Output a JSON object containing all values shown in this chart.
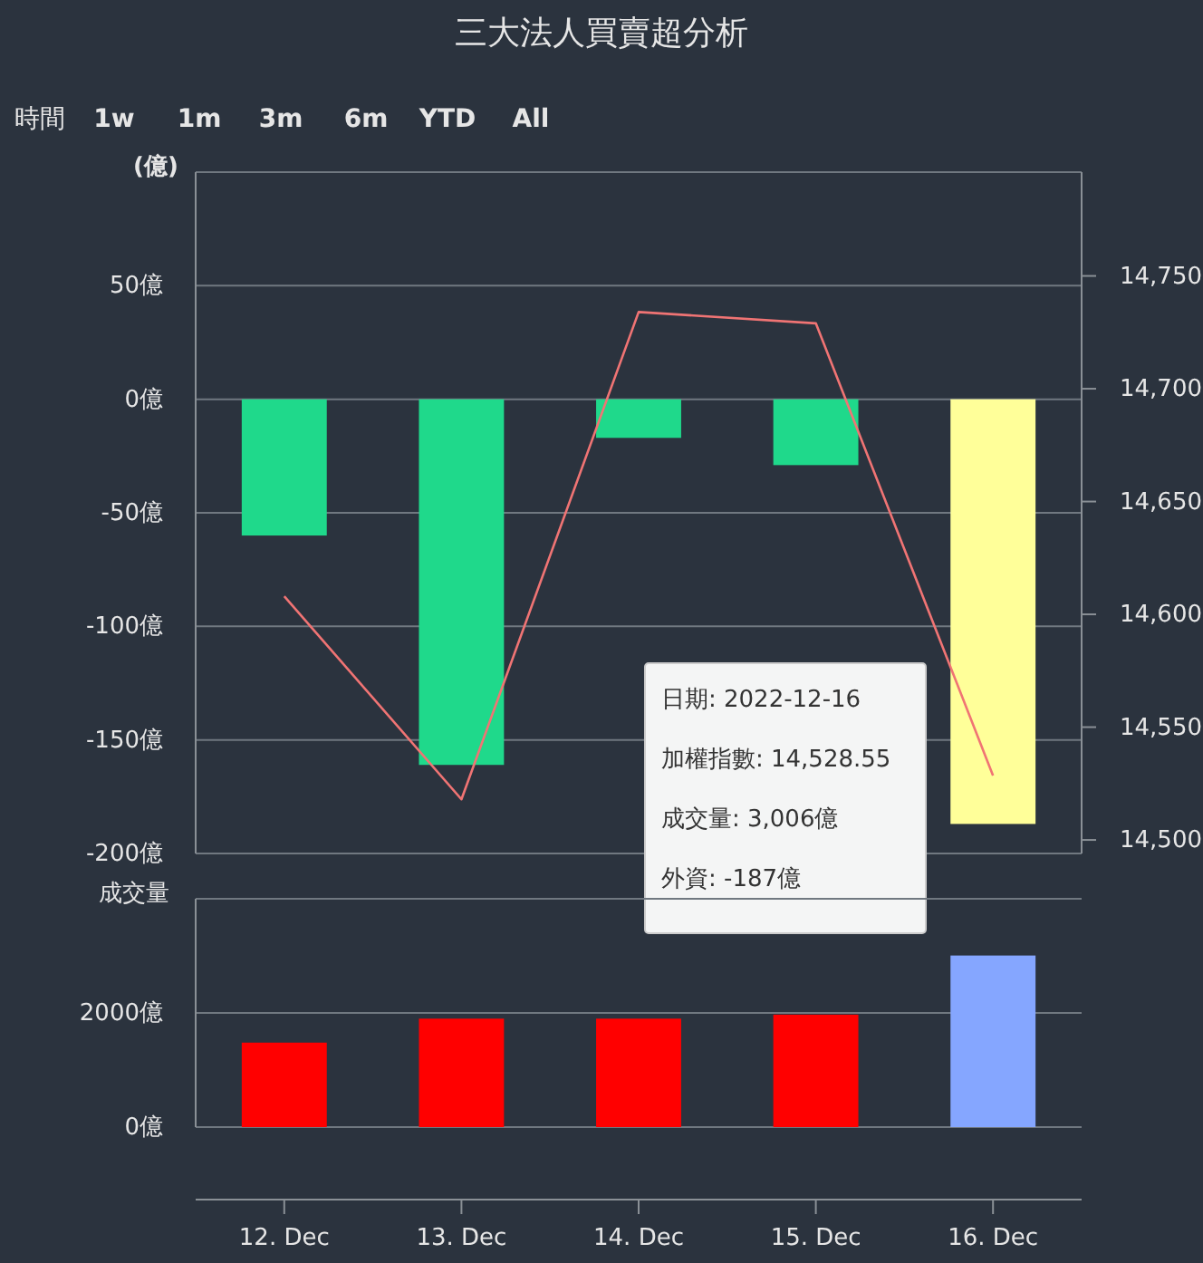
{
  "chart_data": [
    {
      "type": "bar",
      "title": "三大法人買賣超分析",
      "ylabel": "(億)",
      "categories": [
        null,
        null,
        null,
        null,
        null
      ],
      "series": [
        {
          "type": "bar",
          "values": [
            -60,
            -161,
            -17,
            -29,
            -187
          ],
          "colors": [
            "#1fd98b",
            "#1fd98b",
            "#1fd98b",
            "#1fd98b",
            "#ffff99"
          ]
        },
        {
          "type": "line",
          "axis": "y2",
          "color": "#f07474",
          "values": [
            14608,
            14518,
            14734,
            14729,
            14528.55
          ]
        }
      ],
      "ylim": [
        -200,
        100
      ],
      "yticks": [
        {
          "value": -200,
          "label": "-200億"
        },
        {
          "value": -150,
          "label": "-150億"
        },
        {
          "value": -100,
          "label": "-100億"
        },
        {
          "value": -50,
          "label": "-50億"
        },
        {
          "value": 0,
          "label": "0億"
        },
        {
          "value": 50,
          "label": "50億"
        },
        {
          "value": 100,
          "label": null
        }
      ],
      "y2lim": [
        14494,
        14796
      ],
      "y2ticks": [
        {
          "value": 14500,
          "label": "14,500"
        },
        {
          "value": 14550,
          "label": "14,550"
        },
        {
          "value": 14600,
          "label": "14,600"
        },
        {
          "value": 14650,
          "label": "14,650"
        },
        {
          "value": 14700,
          "label": "14,700"
        },
        {
          "value": 14750,
          "label": "14,750"
        }
      ],
      "grid": "y",
      "tick_labels": "y",
      "annotations": [
        "時間",
        "1w",
        "1m",
        "3m",
        "6m",
        "YTD",
        "All",
        "日期: 2022-12-16",
        "加權指數: 14,528.55",
        "成交量: 3,006億",
        "外資: -187億"
      ]
    },
    {
      "type": "bar",
      "ylabel": "成交量",
      "categories": [
        "12. Dec",
        "13. Dec",
        "14. Dec",
        "15. Dec",
        "16. Dec"
      ],
      "values": [
        1480,
        1900,
        1900,
        1970,
        3006
      ],
      "colors": [
        "#ff0000",
        "#ff0000",
        "#ff0000",
        "#ff0000",
        "#85a6ff"
      ],
      "ylim": [
        0,
        4000
      ],
      "yticks": [
        {
          "value": 0,
          "label": "0億"
        },
        {
          "value": 2000,
          "label": "2000億"
        },
        {
          "value": 4000,
          "label": null
        }
      ],
      "grid": "y"
    }
  ]
}
